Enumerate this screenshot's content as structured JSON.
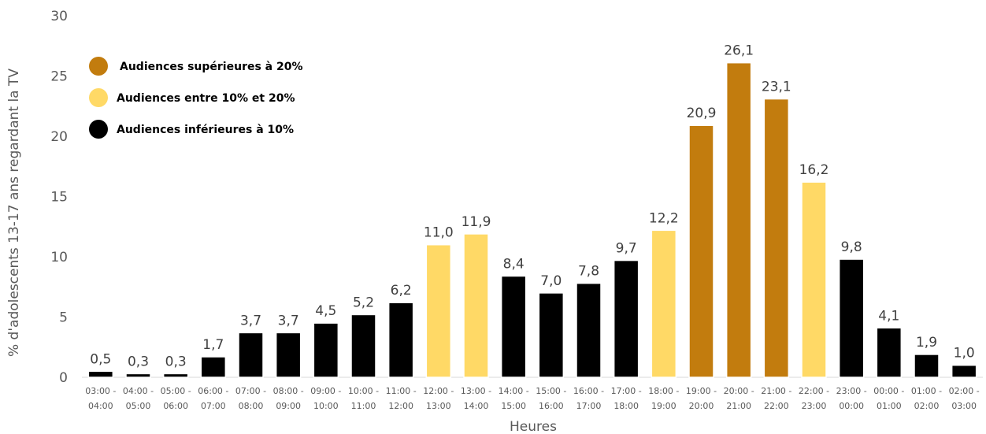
{
  "chart_data": {
    "type": "bar",
    "xlabel": "Heures",
    "ylabel": "% d'adolescents 13-17 ans regardant la TV",
    "ylim": [
      0,
      30
    ],
    "yticks": [
      "0",
      "5",
      "10",
      "15",
      "20",
      "25",
      "30"
    ],
    "grid": false,
    "categories": [
      [
        "03:00 -",
        "04:00"
      ],
      [
        "04:00 -",
        "05:00"
      ],
      [
        "05:00 -",
        "06:00"
      ],
      [
        "06:00 -",
        "07:00"
      ],
      [
        "07:00 -",
        "08:00"
      ],
      [
        "08:00 -",
        "09:00"
      ],
      [
        "09:00 -",
        "10:00"
      ],
      [
        "10:00 -",
        "11:00"
      ],
      [
        "11:00 -",
        "12:00"
      ],
      [
        "12:00 -",
        "13:00"
      ],
      [
        "13:00 -",
        "14:00"
      ],
      [
        "14:00 -",
        "15:00"
      ],
      [
        "15:00 -",
        "16:00"
      ],
      [
        "16:00 -",
        "17:00"
      ],
      [
        "17:00 -",
        "18:00"
      ],
      [
        "18:00 -",
        "19:00"
      ],
      [
        "19:00 -",
        "20:00"
      ],
      [
        "20:00 -",
        "21:00"
      ],
      [
        "21:00 -",
        "22:00"
      ],
      [
        "22:00 -",
        "23:00"
      ],
      [
        "23:00 -",
        "00:00"
      ],
      [
        "00:00 -",
        "01:00"
      ],
      [
        "01:00 -",
        "02:00"
      ],
      [
        "02:00 -",
        "03:00"
      ]
    ],
    "values": [
      0.5,
      0.3,
      0.3,
      1.7,
      3.7,
      3.7,
      4.5,
      5.2,
      6.2,
      11.0,
      11.9,
      8.4,
      7.0,
      7.8,
      9.7,
      12.2,
      20.9,
      26.1,
      23.1,
      16.2,
      9.8,
      4.1,
      1.9,
      1.0
    ],
    "value_labels": [
      "0,5",
      "0,3",
      "0,3",
      "1,7",
      "3,7",
      "3,7",
      "4,5",
      "5,2",
      "6,2",
      "11,0",
      "11,9",
      "8,4",
      "7,0",
      "7,8",
      "9,7",
      "12,2",
      "20,9",
      "26,1",
      "23,1",
      "16,2",
      "9,8",
      "4,1",
      "1,9",
      "1,0"
    ],
    "classes": [
      "low",
      "low",
      "low",
      "low",
      "low",
      "low",
      "low",
      "low",
      "low",
      "mid",
      "mid",
      "low",
      "low",
      "low",
      "low",
      "mid",
      "high",
      "high",
      "high",
      "mid",
      "low",
      "low",
      "low",
      "low"
    ],
    "legend": {
      "placement": "top-left",
      "items": [
        {
          "key": "high",
          "label": "Audiences supérieures à 20%",
          "color": "#C27C0E"
        },
        {
          "key": "mid",
          "label": "Audiences entre 10% et 20%",
          "color": "#FFD966"
        },
        {
          "key": "low",
          "label": "Audiences inférieures à 10%",
          "color": "#000000"
        }
      ]
    }
  }
}
